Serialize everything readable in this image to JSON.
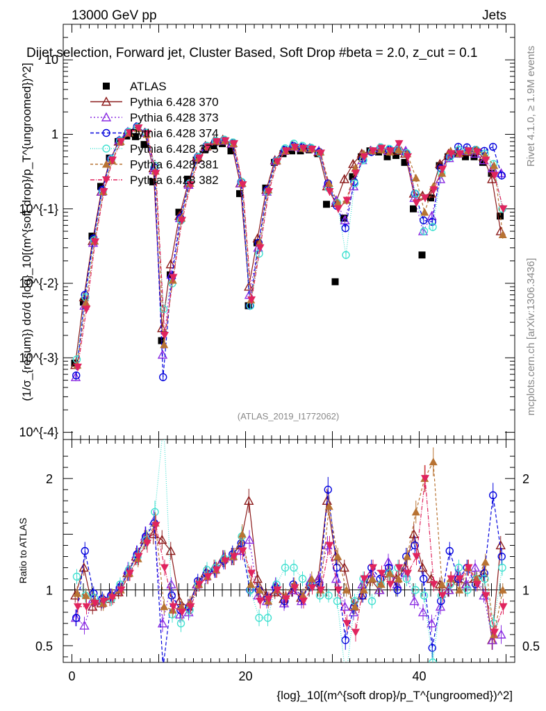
{
  "header": {
    "left": "13000 GeV pp",
    "right": "Jets",
    "title": "Dijet selection, Forward jet, Cluster Based, Soft Drop #beta = 2.0, z_cut = 0.1"
  },
  "side_text": {
    "rivet": "Rivet 4.1.0, ≥ 1.9M events",
    "mcplots": "mcplots.cern.ch [arXiv:1306.3436]"
  },
  "watermark": "(ATLAS_2019_I1772062)",
  "chart_data": {
    "type": "scatter",
    "title": "Dijet selection, Forward jet, Cluster Based, Soft Drop #beta = 2.0, z_cut = 0.1",
    "xlabel": "{log}_10[(m^{soft drop}/p_T^{ungroomed})^2]",
    "ylabel": "(1/σ_{resum}) dσ/d {log}_10[(m^{soft drop}/p_T^{ungroomed})^2]",
    "ratio_ylabel": "Ratio to ATLAS",
    "xlim": [
      -1,
      51
    ],
    "ylim": [
      8e-05,
      30
    ],
    "yscale": "log",
    "ratio_ylim": [
      0.35,
      2.35
    ],
    "x_ticks": [
      0,
      20,
      40
    ],
    "y_ticks": [
      "10^{-4}",
      "10^{-3}",
      "10^{-2}",
      "10^{-1}",
      "1",
      "10"
    ],
    "ratio_ticks": [
      0.5,
      1,
      2
    ],
    "x": [
      0.5,
      1.5,
      2.5,
      3.5,
      4.5,
      5.5,
      6.5,
      7.5,
      8.5,
      9.5,
      10.5,
      11.5,
      12.5,
      13.5,
      14.5,
      15.5,
      16.5,
      17.5,
      18.5,
      19.5,
      20.5,
      21.5,
      22.5,
      23.5,
      24.5,
      25.5,
      26.5,
      27.5,
      28.5,
      29.5,
      30.5,
      31.5,
      32.5,
      33.5,
      34.5,
      35.5,
      36.5,
      37.5,
      38.5,
      39.5,
      40.5,
      41.5,
      42.5,
      43.5,
      44.5,
      45.5,
      46.5,
      47.5,
      48.5,
      49.5
    ],
    "series": [
      {
        "name": "ATLAS",
        "color": "#000000",
        "marker": "square",
        "values": [
          0.00085,
          0.0056,
          0.043,
          0.2,
          0.48,
          0.8,
          0.95,
          0.93,
          0.73,
          0.23,
          0.0017,
          0.013,
          0.09,
          0.25,
          0.45,
          0.62,
          0.7,
          0.75,
          0.6,
          0.16,
          0.005,
          0.035,
          0.19,
          0.42,
          0.55,
          0.6,
          0.6,
          0.62,
          0.55,
          0.115,
          0.0105,
          0.075,
          0.27,
          0.5,
          0.6,
          0.58,
          0.5,
          0.52,
          0.42,
          0.1,
          0.024,
          0.14,
          0.38,
          0.5,
          0.55,
          0.5,
          0.5,
          0.42,
          0.3,
          0.08
        ],
        "ratio": [
          1,
          1,
          1,
          1,
          1,
          1,
          1,
          1,
          1,
          1,
          1,
          1,
          1,
          1,
          1,
          1,
          1,
          1,
          1,
          1,
          1,
          1,
          1,
          1,
          1,
          1,
          1,
          1,
          1,
          1,
          1,
          1,
          1,
          1,
          1,
          1,
          1,
          1,
          1,
          1,
          1,
          1,
          1,
          1,
          1,
          1,
          1,
          1,
          1,
          1
        ]
      },
      {
        "name": "Pythia 6.428 370",
        "color": "#8b1a1a",
        "marker": "triangle-open",
        "dash": "",
        "values": [
          0.0008,
          0.0065,
          0.037,
          0.17,
          0.45,
          0.8,
          1.05,
          1.25,
          1.05,
          0.35,
          0.0025,
          0.018,
          0.08,
          0.22,
          0.5,
          0.7,
          0.82,
          0.85,
          0.75,
          0.22,
          0.009,
          0.04,
          0.18,
          0.45,
          0.62,
          0.7,
          0.68,
          0.65,
          0.58,
          0.2,
          0.12,
          0.25,
          0.4,
          0.55,
          0.6,
          0.65,
          0.62,
          0.6,
          0.55,
          0.16,
          0.15,
          0.16,
          0.4,
          0.55,
          0.6,
          0.58,
          0.6,
          0.5,
          0.25,
          0.05
        ],
        "ratio": [
          0.95,
          1.2,
          0.85,
          0.88,
          0.92,
          0.98,
          1.15,
          1.3,
          1.45,
          1.5,
          1.45,
          1.35,
          0.9,
          0.85,
          1.05,
          1.15,
          1.2,
          1.28,
          1.3,
          1.4,
          1.8,
          1.1,
          0.95,
          0.98,
          0.92,
          1.0,
          0.93,
          1.05,
          1.1,
          1.8,
          1.3,
          1.2,
          0.85,
          0.95,
          1.1,
          1.0,
          1.15,
          1.1,
          1.2,
          1.5,
          1.2,
          1.1,
          1.05,
          1.0,
          1.1,
          1.05,
          1.1,
          1.15,
          0.55,
          1.4
        ]
      },
      {
        "name": "Pythia 6.428 373",
        "color": "#8a2be2",
        "marker": "triangle-open",
        "dash": "2,3",
        "values": [
          0.00055,
          0.005,
          0.035,
          0.17,
          0.46,
          0.83,
          1.08,
          1.25,
          1.05,
          0.33,
          0.0011,
          0.013,
          0.075,
          0.21,
          0.48,
          0.68,
          0.8,
          0.82,
          0.75,
          0.22,
          0.007,
          0.03,
          0.17,
          0.44,
          0.6,
          0.68,
          0.66,
          0.65,
          0.6,
          0.22,
          0.13,
          0.07,
          0.2,
          0.45,
          0.6,
          0.65,
          0.6,
          0.65,
          0.6,
          0.14,
          0.05,
          0.08,
          0.25,
          0.48,
          0.55,
          0.6,
          0.55,
          0.45,
          0.35,
          0.3
        ],
        "ratio": [
          0.75,
          0.68,
          0.92,
          0.9,
          0.95,
          1.02,
          1.18,
          1.32,
          1.48,
          1.62,
          0.7,
          1.05,
          0.78,
          0.8,
          1.05,
          1.12,
          1.18,
          1.28,
          1.3,
          1.35,
          1.45,
          0.95,
          0.9,
          1.05,
          0.88,
          1.0,
          0.9,
          1.08,
          1.1,
          1.4,
          1.1,
          0.85,
          0.8,
          1.05,
          1.15,
          1.0,
          1.25,
          1.05,
          1.15,
          0.9,
          0.8,
          0.7,
          0.85,
          1.0,
          1.15,
          1.05,
          1.2,
          0.95,
          0.55,
          0.6
        ]
      },
      {
        "name": "Pythia 6.428 374",
        "color": "#0000dd",
        "marker": "circle-open",
        "dash": "5,3",
        "values": [
          0.00058,
          0.007,
          0.04,
          0.18,
          0.47,
          0.83,
          1.08,
          1.27,
          1.05,
          0.36,
          0.00055,
          0.012,
          0.075,
          0.22,
          0.5,
          0.7,
          0.8,
          0.84,
          0.76,
          0.23,
          0.005,
          0.035,
          0.18,
          0.44,
          0.62,
          0.7,
          0.67,
          0.66,
          0.58,
          0.22,
          0.11,
          0.055,
          0.23,
          0.47,
          0.58,
          0.65,
          0.62,
          0.62,
          0.56,
          0.16,
          0.07,
          0.067,
          0.35,
          0.5,
          0.68,
          0.67,
          0.62,
          0.6,
          0.68,
          0.28
        ],
        "ratio": [
          0.75,
          1.35,
          0.97,
          0.92,
          0.95,
          1.02,
          1.15,
          1.32,
          1.48,
          1.6,
          0.3,
          0.95,
          0.82,
          0.85,
          1.08,
          1.15,
          1.18,
          1.26,
          1.32,
          1.42,
          1.0,
          1.0,
          0.92,
          1.02,
          0.9,
          1.05,
          0.93,
          1.05,
          1.05,
          1.9,
          1.2,
          0.55,
          0.85,
          0.95,
          1.2,
          1.1,
          1.2,
          1.0,
          1.3,
          1.4,
          1.1,
          0.48,
          0.9,
          1.35,
          1.1,
          1.2,
          1.05,
          1.15,
          1.85,
          1.3
        ]
      },
      {
        "name": "Pythia 6.428 375",
        "color": "#40e0d0",
        "marker": "circle-open",
        "dash": "1,2",
        "values": [
          0.00095,
          0.0065,
          0.038,
          0.17,
          0.47,
          0.82,
          1.08,
          1.25,
          1.05,
          0.38,
          0.0045,
          0.01,
          0.07,
          0.22,
          0.5,
          0.7,
          0.82,
          0.85,
          0.78,
          0.23,
          0.005,
          0.025,
          0.17,
          0.44,
          0.65,
          0.75,
          0.7,
          0.66,
          0.56,
          0.19,
          0.12,
          0.024,
          0.22,
          0.45,
          0.6,
          0.67,
          0.64,
          0.62,
          0.56,
          0.16,
          0.05,
          0.057,
          0.3,
          0.5,
          0.62,
          0.6,
          0.62,
          0.55,
          0.4,
          0.1
        ],
        "ratio": [
          1.12,
          0.95,
          0.93,
          0.9,
          0.92,
          1.05,
          1.18,
          1.3,
          1.45,
          1.7,
          2.5,
          0.78,
          0.7,
          0.82,
          1.05,
          1.18,
          1.2,
          1.28,
          1.3,
          1.48,
          1.0,
          0.75,
          0.75,
          1.05,
          1.2,
          1.2,
          1.1,
          1.05,
          0.95,
          0.95,
          0.9,
          0.2,
          0.9,
          1.1,
          0.9,
          1.05,
          1.15,
          1.2,
          1.1,
          1.0,
          0.95,
          0.35,
          0.95,
          1.05,
          1.2,
          1.0,
          1.1,
          1.1,
          0.7,
          1.2
        ]
      },
      {
        "name": "Pythia 6.428 381",
        "color": "#b87333",
        "marker": "triangle-filled",
        "dash": "4,3",
        "values": [
          0.0008,
          0.0055,
          0.037,
          0.17,
          0.45,
          0.8,
          1.05,
          1.2,
          1.0,
          0.32,
          0.0015,
          0.011,
          0.075,
          0.22,
          0.48,
          0.68,
          0.8,
          0.82,
          0.75,
          0.22,
          0.006,
          0.035,
          0.18,
          0.44,
          0.6,
          0.68,
          0.65,
          0.64,
          0.58,
          0.22,
          0.12,
          0.13,
          0.35,
          0.55,
          0.6,
          0.62,
          0.58,
          0.62,
          0.55,
          0.26,
          0.09,
          0.2,
          0.3,
          0.6,
          0.55,
          0.6,
          0.62,
          0.52,
          0.38,
          0.045
        ],
        "ratio": [
          0.97,
          0.95,
          0.9,
          0.88,
          0.95,
          1.0,
          1.15,
          1.28,
          1.45,
          1.6,
          0.85,
          0.82,
          0.85,
          0.88,
          1.05,
          1.12,
          1.18,
          1.28,
          1.3,
          1.5,
          1.05,
          1.0,
          0.9,
          1.0,
          0.95,
          1.05,
          0.95,
          1.1,
          1.0,
          1.75,
          1.3,
          1.0,
          0.85,
          1.0,
          1.1,
          1.05,
          1.15,
          1.1,
          1.3,
          1.7,
          2.0,
          2.15,
          1.05,
          1.1,
          1.0,
          1.2,
          1.1,
          1.25,
          0.6,
          1.0
        ]
      },
      {
        "name": "Pythia 6.428 382",
        "color": "#e0245e",
        "marker": "triangle-down-filled",
        "dash": "6,2,1,2",
        "values": [
          0.00075,
          0.0045,
          0.036,
          0.17,
          0.45,
          0.8,
          1.05,
          1.22,
          1.02,
          0.3,
          0.002,
          0.012,
          0.07,
          0.21,
          0.48,
          0.68,
          0.8,
          0.82,
          0.75,
          0.21,
          0.006,
          0.03,
          0.17,
          0.43,
          0.6,
          0.67,
          0.65,
          0.63,
          0.56,
          0.17,
          0.1,
          0.13,
          0.3,
          0.5,
          0.6,
          0.65,
          0.6,
          0.75,
          0.5,
          0.12,
          0.14,
          0.18,
          0.34,
          0.55,
          0.55,
          0.6,
          0.58,
          0.45,
          0.28,
          0.1
        ],
        "ratio": [
          0.85,
          0.85,
          0.88,
          0.9,
          0.93,
          1.0,
          1.15,
          1.3,
          1.42,
          1.58,
          1.2,
          0.85,
          0.8,
          0.85,
          1.05,
          1.12,
          1.18,
          1.26,
          1.3,
          1.35,
          1.15,
          0.9,
          0.92,
          1.0,
          0.92,
          1.02,
          0.9,
          1.02,
          1.0,
          1.4,
          1.0,
          0.7,
          0.62,
          1.1,
          1.2,
          1.15,
          1.05,
          1.2,
          1.15,
          1.3,
          2.0,
          1.05,
          0.95,
          1.1,
          1.1,
          1.2,
          1.05,
          0.95,
          0.62,
          0.85
        ]
      }
    ]
  }
}
